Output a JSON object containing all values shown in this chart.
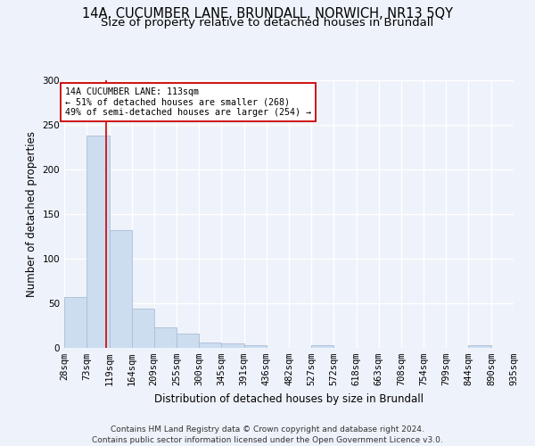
{
  "title": "14A, CUCUMBER LANE, BRUNDALL, NORWICH, NR13 5QY",
  "subtitle": "Size of property relative to detached houses in Brundall",
  "xlabel": "Distribution of detached houses by size in Brundall",
  "ylabel": "Number of detached properties",
  "bar_color": "#ccddf0",
  "bar_edgecolor": "#aabdd8",
  "vline_x": 113,
  "vline_color": "#cc0000",
  "annotation_lines": [
    "14A CUCUMBER LANE: 113sqm",
    "← 51% of detached houses are smaller (268)",
    "49% of semi-detached houses are larger (254) →"
  ],
  "annotation_box_color": "#ffffff",
  "annotation_box_edgecolor": "#cc0000",
  "bin_edges": [
    28,
    73,
    119,
    164,
    209,
    255,
    300,
    345,
    391,
    436,
    482,
    527,
    572,
    618,
    663,
    708,
    754,
    799,
    844,
    890,
    935
  ],
  "bar_heights": [
    57,
    238,
    132,
    44,
    23,
    16,
    6,
    5,
    3,
    0,
    0,
    3,
    0,
    0,
    0,
    0,
    0,
    0,
    3,
    0
  ],
  "ylim": [
    0,
    300
  ],
  "yticks": [
    0,
    50,
    100,
    150,
    200,
    250,
    300
  ],
  "background_color": "#eef2fa",
  "grid_color": "#ffffff",
  "footer_text": "Contains HM Land Registry data © Crown copyright and database right 2024.\nContains public sector information licensed under the Open Government Licence v3.0.",
  "title_fontsize": 10.5,
  "subtitle_fontsize": 9.5,
  "axis_label_fontsize": 8.5,
  "tick_fontsize": 7.5,
  "footer_fontsize": 6.5
}
